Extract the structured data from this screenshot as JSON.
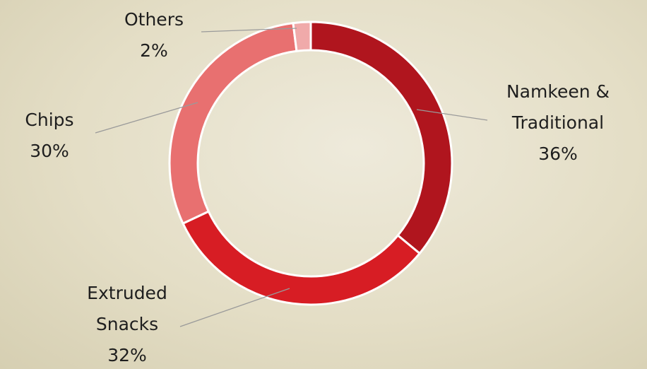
{
  "chart_data": {
    "type": "donut",
    "categories": [
      "Namkeen & Traditional",
      "Extruded Snacks",
      "Chips",
      "Others"
    ],
    "values": [
      36,
      32,
      30,
      2
    ],
    "value_labels": [
      "36%",
      "32%",
      "30%",
      "2%"
    ],
    "colors": [
      "#b0151e",
      "#d71d24",
      "#e87070",
      "#f0aaaa"
    ]
  }
}
